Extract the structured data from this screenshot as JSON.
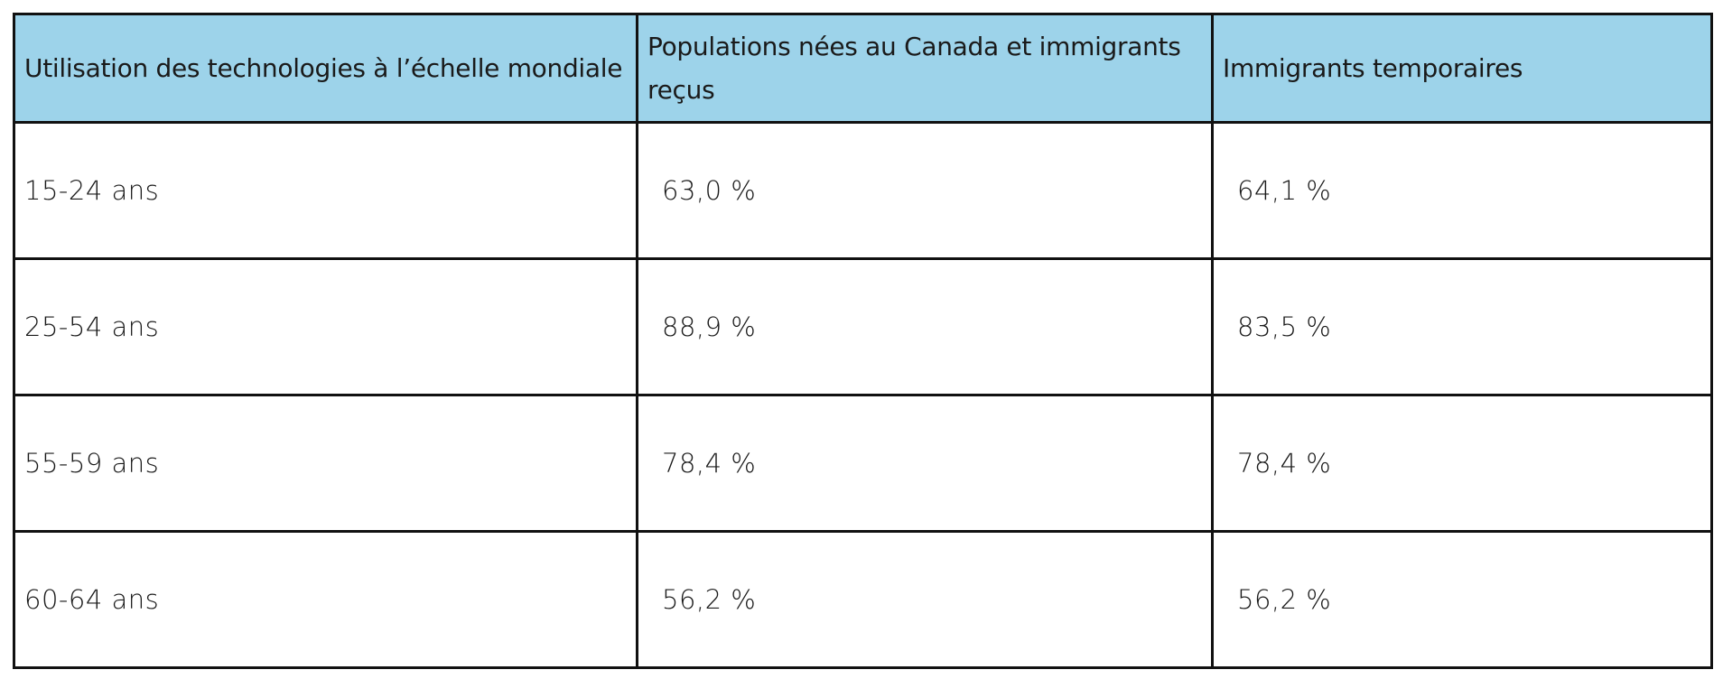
{
  "table": {
    "headers": [
      "Utilisation des technologies à l’échelle mondiale",
      "Populations nées au Canada et immigrants reçus",
      "Immigrants temporaires"
    ],
    "rows": [
      {
        "age": "15-24 ans",
        "canada": "63,0 %",
        "temporaires": "64,1 %"
      },
      {
        "age": "25-54 ans",
        "canada": "88,9 %",
        "temporaires": "83,5 %"
      },
      {
        "age": "55-59 ans",
        "canada": "78,4 %",
        "temporaires": "78,4 %"
      },
      {
        "age": "60-64 ans",
        "canada": "56,2 %",
        "temporaires": "56,2 %"
      }
    ]
  }
}
